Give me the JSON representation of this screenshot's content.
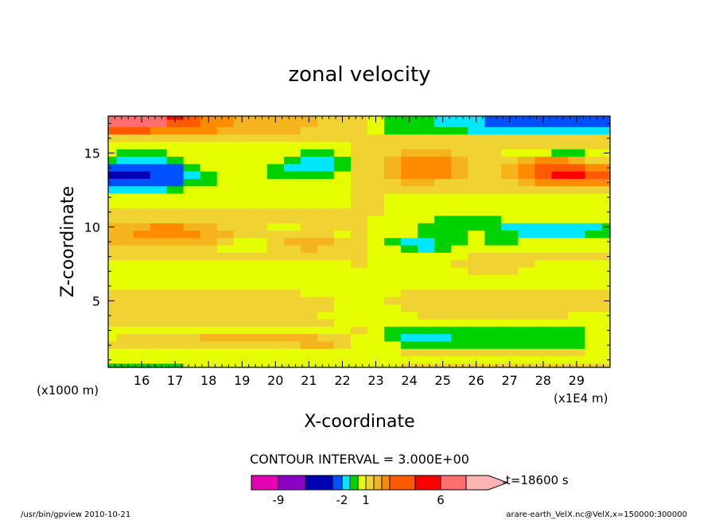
{
  "chart_data": {
    "type": "heatmap",
    "title": "zonal velocity",
    "xlabel": "X-coordinate",
    "ylabel": "Z-coordinate",
    "x_unit_note": "(x1E4 m)",
    "y_unit_note": "(x1000 m)",
    "x_ticks": [
      16,
      17,
      18,
      19,
      20,
      21,
      22,
      23,
      24,
      25,
      26,
      27,
      28,
      29
    ],
    "y_ticks": [
      5,
      10,
      15
    ],
    "xlim": [
      15,
      30
    ],
    "ylim": [
      0.5,
      17.5
    ],
    "contour_interval": "CONTOUR INTERVAL = 3.000E+00",
    "time_label": "t=18600 s",
    "colorbar": {
      "labels": [
        {
          "text": "-9",
          "value": -9
        },
        {
          "text": "-2",
          "value": -2
        },
        {
          "text": "1",
          "value": 1
        },
        {
          "text": "6",
          "value": 6
        }
      ],
      "colors": [
        "#e600b4",
        "#8c00c8",
        "#0000b4",
        "#0050ff",
        "#00e6ff",
        "#00d200",
        "#e6ff00",
        "#f0d232",
        "#f5b41e",
        "#ff8c00",
        "#ff5a00",
        "#ff0000",
        "#ff6e6e",
        "#ffb4b4"
      ]
    },
    "data_grid": {
      "x": [
        15.0,
        15.5,
        16.0,
        16.5,
        17.0,
        17.5,
        18.0,
        18.5,
        19.0,
        19.5,
        20.0,
        20.5,
        21.0,
        21.5,
        22.0,
        22.5,
        23.0,
        23.5,
        24.0,
        24.5,
        25.0,
        25.5,
        26.0,
        26.5,
        27.0,
        27.5,
        28.0,
        28.5,
        29.0,
        29.5,
        30.0
      ],
      "y": [
        17.5,
        17.0,
        16.5,
        16.0,
        15.5,
        15.0,
        14.5,
        14.0,
        13.5,
        13.0,
        12.5,
        12.0,
        11.5,
        11.0,
        10.5,
        10.0,
        9.5,
        9.0,
        8.5,
        8.0,
        7.5,
        7.0,
        6.5,
        6.0,
        5.5,
        5.0,
        4.5,
        4.0,
        3.5,
        3.0,
        2.5,
        2.0,
        1.5,
        1.0,
        0.5
      ],
      "values": [
        [
          7.5,
          7.5,
          7.2,
          6.6,
          5.4,
          4.2,
          3.6,
          3.0,
          2.4,
          2.4,
          2.4,
          2.4,
          2.1,
          1.8,
          1.5,
          1.5,
          0.0,
          -0.6,
          -0.9,
          -0.9,
          -1.5,
          -1.5,
          -1.8,
          -2.1,
          -2.4,
          -2.7,
          -2.7,
          -3.0,
          -3.0,
          -3.0,
          -3.0
        ],
        [
          6.6,
          6.6,
          6.6,
          6.0,
          4.8,
          4.2,
          3.6,
          3.0,
          2.4,
          2.4,
          2.4,
          2.4,
          2.1,
          1.8,
          1.5,
          1.5,
          0.0,
          -0.6,
          -0.9,
          -0.9,
          -1.2,
          -1.5,
          -1.8,
          -2.1,
          -2.4,
          -2.7,
          -2.7,
          -2.7,
          -3.0,
          -3.0,
          -3.0
        ],
        [
          4.2,
          4.2,
          4.2,
          3.9,
          3.6,
          3.3,
          3.0,
          2.7,
          2.4,
          2.4,
          2.4,
          2.1,
          1.8,
          1.5,
          1.2,
          1.2,
          0.0,
          -0.3,
          -0.6,
          -0.6,
          -0.9,
          -0.9,
          -1.2,
          -1.5,
          -1.5,
          -1.8,
          -1.8,
          -1.8,
          -1.8,
          -1.8,
          -1.8
        ],
        [
          1.8,
          1.8,
          1.8,
          1.8,
          1.8,
          1.8,
          1.8,
          1.8,
          1.8,
          1.8,
          1.8,
          1.8,
          1.8,
          1.5,
          1.5,
          1.2,
          1.2,
          1.2,
          1.2,
          1.2,
          1.2,
          1.2,
          1.2,
          1.2,
          1.2,
          1.2,
          1.2,
          1.2,
          1.2,
          1.2,
          1.2
        ],
        [
          0.3,
          0.3,
          0.3,
          0.6,
          0.6,
          0.6,
          0.6,
          0.6,
          0.6,
          0.6,
          0.6,
          0.6,
          0.6,
          0.6,
          0.9,
          1.2,
          1.2,
          1.2,
          1.2,
          1.2,
          1.2,
          1.2,
          1.2,
          1.2,
          1.2,
          1.2,
          1.2,
          1.2,
          1.2,
          1.2,
          1.2
        ],
        [
          0.0,
          -0.3,
          -0.3,
          -0.3,
          0.0,
          0.3,
          0.6,
          0.6,
          0.6,
          0.6,
          0.3,
          0.0,
          -0.3,
          -0.3,
          0.3,
          1.2,
          1.2,
          1.8,
          2.4,
          2.4,
          2.1,
          1.8,
          1.2,
          1.2,
          0.6,
          0.3,
          0.0,
          -0.3,
          -0.3,
          0.0,
          0.0
        ],
        [
          -0.9,
          -1.5,
          -1.8,
          -1.5,
          -0.9,
          0.0,
          0.3,
          0.6,
          0.3,
          0.3,
          0.0,
          -0.9,
          -1.5,
          -1.5,
          -0.6,
          1.2,
          1.2,
          2.4,
          3.3,
          3.6,
          3.0,
          2.4,
          1.2,
          1.2,
          1.8,
          2.4,
          3.0,
          3.0,
          2.4,
          1.8,
          1.5
        ],
        [
          -2.4,
          -2.7,
          -3.0,
          -2.7,
          -2.1,
          -0.9,
          0.0,
          0.3,
          0.0,
          0.0,
          -0.3,
          -1.2,
          -1.8,
          -1.8,
          -0.6,
          1.2,
          1.2,
          2.4,
          3.3,
          3.6,
          3.3,
          2.4,
          1.2,
          1.2,
          2.4,
          3.3,
          4.2,
          4.5,
          4.2,
          3.6,
          3.3
        ],
        [
          -3.3,
          -3.6,
          -3.3,
          -3.0,
          -2.4,
          -1.2,
          -0.3,
          0.0,
          0.0,
          0.0,
          -0.3,
          -0.6,
          -0.6,
          -0.3,
          0.3,
          1.2,
          1.2,
          2.4,
          3.0,
          3.3,
          3.0,
          2.1,
          1.2,
          1.2,
          2.4,
          3.3,
          4.5,
          5.1,
          5.1,
          4.8,
          4.8
        ],
        [
          -2.4,
          -2.7,
          -3.0,
          -2.7,
          -2.1,
          -0.9,
          -0.3,
          0.0,
          0.0,
          0.0,
          0.3,
          0.6,
          0.6,
          0.6,
          0.6,
          1.2,
          1.2,
          1.8,
          2.1,
          2.1,
          1.8,
          1.5,
          1.2,
          1.2,
          1.8,
          2.4,
          3.3,
          3.9,
          3.9,
          3.6,
          3.3
        ],
        [
          -1.2,
          -1.5,
          -1.5,
          -1.2,
          -0.6,
          0.0,
          0.3,
          0.3,
          0.6,
          0.6,
          0.9,
          0.9,
          0.9,
          0.9,
          0.9,
          1.2,
          1.2,
          1.2,
          1.2,
          1.2,
          1.2,
          1.2,
          1.2,
          1.2,
          1.2,
          1.5,
          1.8,
          1.8,
          1.8,
          1.8,
          1.8
        ],
        [
          0.0,
          0.0,
          0.3,
          0.3,
          0.6,
          0.6,
          0.6,
          0.6,
          0.6,
          0.6,
          0.6,
          0.6,
          0.6,
          0.6,
          0.6,
          1.2,
          1.2,
          0.9,
          0.6,
          0.6,
          0.6,
          0.6,
          0.6,
          0.6,
          0.6,
          0.6,
          0.6,
          0.6,
          0.6,
          0.6,
          0.6
        ],
        [
          0.9,
          0.9,
          0.9,
          0.9,
          0.9,
          0.9,
          0.9,
          0.9,
          0.9,
          0.9,
          0.9,
          0.9,
          0.9,
          0.9,
          0.9,
          1.2,
          1.2,
          0.9,
          0.9,
          0.9,
          0.9,
          0.9,
          0.9,
          0.9,
          0.9,
          0.9,
          0.9,
          0.9,
          0.9,
          0.9,
          0.9
        ],
        [
          1.2,
          1.2,
          1.2,
          1.2,
          1.2,
          1.2,
          1.2,
          1.2,
          1.2,
          1.2,
          1.2,
          1.2,
          1.2,
          1.2,
          1.2,
          1.2,
          1.2,
          0.9,
          0.6,
          0.6,
          0.6,
          0.6,
          0.6,
          0.6,
          0.6,
          0.6,
          0.6,
          0.6,
          0.6,
          0.6,
          0.6
        ],
        [
          1.5,
          1.8,
          1.8,
          1.8,
          1.8,
          1.8,
          1.8,
          1.5,
          1.2,
          1.2,
          1.2,
          1.2,
          1.5,
          1.5,
          1.5,
          1.2,
          0.9,
          0.6,
          0.3,
          0.0,
          -0.3,
          -0.3,
          -0.3,
          -0.3,
          0.0,
          0.0,
          0.0,
          0.0,
          0.0,
          0.0,
          0.0
        ],
        [
          2.4,
          2.7,
          2.7,
          3.0,
          3.0,
          2.7,
          2.4,
          1.8,
          1.5,
          1.2,
          0.9,
          0.9,
          1.2,
          1.2,
          1.2,
          1.2,
          0.9,
          0.6,
          0.0,
          -0.6,
          -0.6,
          -0.3,
          -0.6,
          -0.9,
          -1.2,
          -1.5,
          -1.8,
          -1.8,
          -1.5,
          -1.2,
          -0.9
        ],
        [
          2.7,
          2.7,
          3.0,
          3.3,
          3.3,
          3.0,
          2.7,
          2.1,
          1.5,
          1.2,
          1.2,
          1.5,
          1.5,
          1.2,
          0.9,
          1.2,
          0.9,
          0.6,
          0.0,
          -0.3,
          -0.6,
          -0.6,
          0.0,
          -0.6,
          -0.9,
          -1.2,
          -1.2,
          -1.2,
          -1.2,
          -0.9,
          -0.6
        ],
        [
          2.1,
          2.4,
          2.7,
          2.7,
          2.7,
          2.4,
          2.1,
          1.8,
          0.9,
          0.6,
          1.5,
          2.1,
          2.4,
          2.1,
          1.5,
          1.2,
          0.6,
          -0.3,
          -1.2,
          -1.5,
          -0.9,
          -0.3,
          0.3,
          -0.3,
          -0.6,
          0.0,
          0.3,
          0.3,
          0.3,
          0.3,
          0.3
        ],
        [
          1.5,
          1.8,
          1.8,
          1.8,
          1.8,
          1.5,
          1.2,
          0.9,
          0.3,
          0.6,
          1.5,
          1.8,
          2.1,
          1.8,
          1.5,
          1.2,
          0.6,
          0.0,
          -0.6,
          -1.2,
          -0.6,
          0.0,
          0.6,
          0.6,
          0.3,
          0.6,
          0.9,
          0.9,
          0.9,
          0.9,
          0.9
        ],
        [
          1.2,
          1.2,
          1.2,
          1.2,
          1.2,
          1.2,
          1.2,
          1.2,
          1.2,
          1.2,
          1.2,
          1.2,
          1.2,
          1.2,
          1.2,
          1.2,
          0.6,
          0.3,
          0.6,
          0.9,
          0.9,
          0.9,
          1.2,
          1.2,
          1.2,
          1.2,
          1.2,
          1.2,
          1.2,
          1.2,
          1.2
        ],
        [
          0.6,
          0.6,
          0.6,
          0.6,
          0.6,
          0.6,
          0.6,
          0.6,
          0.9,
          0.9,
          0.9,
          0.9,
          0.9,
          0.9,
          0.9,
          1.2,
          0.6,
          0.6,
          0.6,
          0.6,
          0.6,
          1.2,
          1.2,
          1.2,
          1.2,
          1.2,
          0.9,
          0.9,
          0.9,
          0.9,
          0.9
        ],
        [
          0.3,
          0.3,
          0.3,
          0.3,
          0.6,
          0.6,
          0.3,
          0.3,
          0.3,
          0.3,
          0.6,
          0.6,
          0.6,
          0.6,
          0.6,
          0.9,
          0.6,
          0.3,
          0.3,
          0.3,
          0.6,
          0.9,
          1.2,
          1.2,
          1.2,
          0.9,
          0.6,
          0.6,
          0.6,
          0.6,
          0.6
        ],
        [
          0.3,
          0.3,
          0.3,
          0.3,
          0.3,
          0.3,
          0.3,
          0.3,
          0.3,
          0.3,
          0.3,
          0.3,
          0.3,
          0.3,
          0.3,
          0.3,
          0.3,
          0.3,
          0.3,
          0.3,
          0.3,
          0.3,
          0.3,
          0.3,
          0.3,
          0.3,
          0.3,
          0.3,
          0.3,
          0.3,
          0.3
        ],
        [
          0.6,
          0.6,
          0.6,
          0.6,
          0.6,
          0.6,
          0.6,
          0.6,
          0.6,
          0.6,
          0.6,
          0.6,
          0.6,
          0.6,
          0.6,
          0.6,
          0.6,
          0.6,
          0.6,
          0.6,
          0.6,
          0.6,
          0.6,
          0.6,
          0.6,
          0.6,
          0.6,
          0.6,
          0.6,
          0.6,
          0.6
        ],
        [
          1.2,
          1.2,
          1.2,
          1.2,
          1.2,
          1.2,
          1.2,
          1.2,
          1.2,
          1.2,
          1.2,
          1.2,
          0.9,
          0.9,
          0.9,
          0.6,
          0.6,
          0.9,
          1.2,
          1.2,
          1.2,
          1.2,
          1.2,
          1.2,
          1.2,
          1.2,
          1.2,
          1.2,
          1.2,
          1.2,
          1.2
        ],
        [
          1.2,
          1.2,
          1.2,
          1.2,
          1.2,
          1.2,
          1.2,
          1.2,
          1.2,
          1.2,
          1.2,
          1.2,
          1.2,
          1.2,
          0.9,
          0.6,
          0.6,
          1.2,
          1.2,
          1.2,
          1.2,
          1.2,
          1.2,
          1.2,
          1.2,
          1.2,
          1.2,
          1.2,
          1.2,
          1.2,
          1.2
        ],
        [
          1.2,
          1.2,
          1.2,
          1.2,
          1.2,
          1.2,
          1.2,
          1.2,
          1.2,
          1.2,
          1.2,
          1.2,
          1.2,
          1.2,
          0.6,
          0.6,
          0.6,
          0.9,
          1.2,
          1.2,
          1.2,
          1.2,
          1.2,
          1.2,
          1.2,
          1.2,
          1.2,
          1.2,
          1.2,
          1.2,
          1.2
        ],
        [
          1.2,
          1.2,
          1.5,
          1.8,
          1.5,
          1.2,
          1.2,
          1.2,
          1.2,
          1.2,
          1.2,
          1.2,
          1.2,
          0.9,
          0.6,
          0.6,
          0.6,
          0.6,
          0.9,
          1.2,
          1.2,
          1.2,
          1.2,
          1.2,
          1.2,
          1.2,
          1.2,
          1.2,
          0.9,
          0.9,
          0.9
        ],
        [
          1.2,
          1.2,
          1.2,
          1.2,
          1.2,
          1.2,
          1.2,
          1.2,
          1.2,
          1.2,
          1.2,
          1.2,
          1.2,
          1.2,
          0.6,
          0.9,
          0.3,
          0.3,
          0.6,
          0.6,
          0.6,
          0.6,
          0.6,
          0.6,
          0.6,
          0.6,
          0.6,
          0.6,
          0.3,
          0.3,
          0.6
        ],
        [
          0.6,
          0.6,
          0.6,
          0.6,
          0.6,
          0.6,
          0.6,
          0.6,
          0.6,
          0.6,
          0.6,
          0.6,
          0.6,
          0.6,
          0.9,
          1.2,
          0.6,
          -0.3,
          -0.3,
          -0.3,
          -0.3,
          -0.3,
          -0.3,
          -0.3,
          -0.3,
          -0.3,
          -0.3,
          -0.3,
          -0.3,
          0.0,
          0.3
        ],
        [
          0.9,
          1.2,
          1.2,
          1.5,
          1.8,
          1.8,
          2.1,
          2.1,
          2.1,
          2.1,
          2.1,
          2.1,
          2.1,
          1.8,
          1.2,
          0.6,
          0.6,
          -0.6,
          -1.2,
          -1.2,
          -1.2,
          -0.9,
          -0.9,
          -0.9,
          -0.9,
          -0.9,
          -0.9,
          -0.9,
          -0.9,
          0.0,
          0.3
        ],
        [
          1.2,
          1.2,
          1.5,
          1.5,
          1.8,
          1.8,
          1.8,
          1.8,
          1.8,
          1.8,
          1.8,
          1.8,
          2.1,
          2.1,
          1.2,
          0.6,
          0.9,
          0.0,
          -0.6,
          -0.6,
          -0.6,
          -0.3,
          -0.3,
          -0.3,
          -0.3,
          -0.3,
          -0.6,
          -0.6,
          -0.3,
          0.0,
          0.3
        ],
        [
          0.6,
          0.6,
          0.6,
          0.6,
          0.6,
          0.6,
          0.6,
          0.6,
          0.6,
          0.6,
          0.6,
          0.6,
          0.6,
          0.6,
          0.6,
          0.6,
          0.6,
          0.9,
          1.2,
          1.2,
          1.2,
          1.2,
          1.2,
          1.2,
          1.2,
          1.2,
          1.2,
          1.2,
          1.2,
          0.9,
          0.6
        ],
        [
          0.3,
          0.3,
          0.3,
          0.3,
          0.3,
          0.3,
          0.3,
          0.3,
          0.3,
          0.3,
          0.3,
          0.3,
          0.3,
          0.3,
          0.3,
          0.3,
          0.6,
          0.6,
          0.6,
          0.6,
          0.6,
          0.6,
          0.6,
          0.6,
          0.6,
          0.6,
          0.6,
          0.6,
          0.6,
          0.6,
          0.6
        ],
        [
          -0.6,
          -0.9,
          -0.9,
          -0.6,
          -0.3,
          0.0,
          0.0,
          0.0,
          0.0,
          0.0,
          0.0,
          0.0,
          0.0,
          0.0,
          0.3,
          0.3,
          0.6,
          0.9,
          1.2,
          1.2,
          1.2,
          1.2,
          1.2,
          1.2,
          1.2,
          1.2,
          1.2,
          1.2,
          1.2,
          1.2,
          1.2
        ]
      ]
    }
  },
  "footer": {
    "program": "/usr/bin/gpview  2010-10-21",
    "source": "arare-earth_VelX.nc@VelX,x=150000:300000"
  }
}
